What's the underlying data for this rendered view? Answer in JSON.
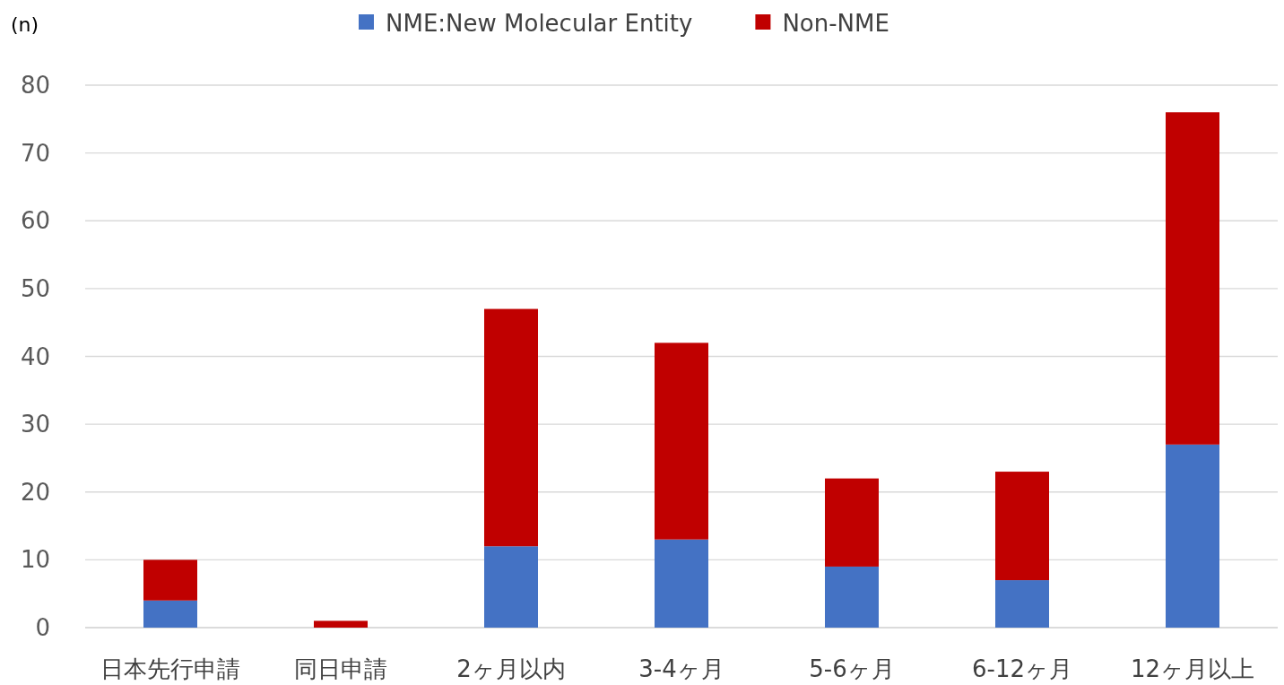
{
  "chart_data": {
    "type": "bar",
    "stacked": true,
    "ylabel": "(n)",
    "categories": [
      "日本先行申請",
      "同日申請",
      "2ヶ月以内",
      "3-4ヶ月",
      "5-6ヶ月",
      "6-12ヶ月",
      "12ヶ月以上"
    ],
    "series": [
      {
        "name": "NME:New Molecular Entity",
        "color": "#4472c4",
        "values": [
          4,
          0,
          12,
          13,
          9,
          7,
          27
        ]
      },
      {
        "name": "Non-NME",
        "color": "#c00000",
        "values": [
          6,
          1,
          35,
          29,
          13,
          16,
          49
        ]
      }
    ],
    "ylim": [
      0,
      80
    ],
    "yticks": [
      0,
      10,
      20,
      30,
      40,
      50,
      60,
      70,
      80
    ],
    "grid": "y",
    "legend": "top"
  }
}
